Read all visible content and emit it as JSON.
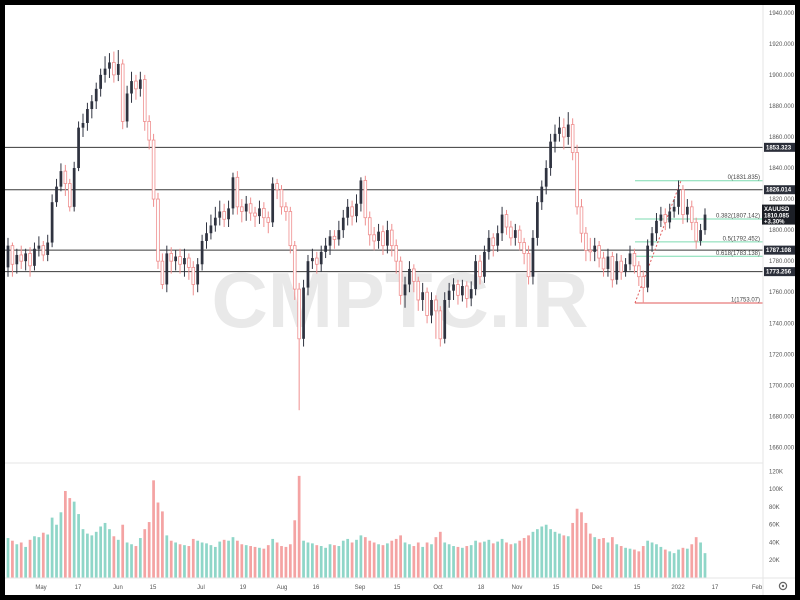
{
  "colors": {
    "up": "#2f3340",
    "down": "#ef8f8f",
    "vol_up": "#8fd6c8",
    "vol_down": "#f4a3a3",
    "level": "#3a3a3a",
    "fib_green": "#7ddbb0",
    "fib_red": "#e05a5a",
    "tag_bg": "#2a2e39",
    "tag_price": "#1c1f26"
  },
  "watermark": "CMPTC.IR",
  "chart_data": {
    "type": "candlestick",
    "symbol": "XAUUSD",
    "price": "1810.085",
    "change": "+3.30%",
    "y_axis_ticks": [
      "1940.000",
      "1920.000",
      "1900.000",
      "1880.000",
      "1860.000",
      "1840.000",
      "1820.000",
      "1800.000",
      "1780.000",
      "1760.000",
      "1740.000",
      "1720.000",
      "1700.000",
      "1680.000",
      "1660.000"
    ],
    "ylim": [
      1650,
      1945
    ],
    "volume_ticks": [
      "120K",
      "100K",
      "80K",
      "60K",
      "40K",
      "20K"
    ],
    "volume_ylim": [
      0,
      125000
    ],
    "x_axis_ticks": [
      "May",
      "17",
      "Jun",
      "15",
      "Jul",
      "19",
      "Aug",
      "16",
      "Sep",
      "15",
      "Oct",
      "18",
      "Nov",
      "15",
      "Dec",
      "15",
      "2022",
      "17",
      "Feb"
    ],
    "horizontal_levels": [
      {
        "price": 1853.323,
        "label": "1853.323"
      },
      {
        "price": 1826.014,
        "label": "1826.014"
      },
      {
        "price": 1787.108,
        "label": "1787.108"
      },
      {
        "price": 1773.256,
        "label": "1773.256"
      }
    ],
    "fibonacci": [
      {
        "ratio": "0",
        "price": 1831.835,
        "label": "0(1831.835)"
      },
      {
        "ratio": "0.382",
        "price": 1807.142,
        "label": "0.382(1807.142)"
      },
      {
        "ratio": "0.5",
        "price": 1792.452,
        "label": "0.5(1792.452)"
      },
      {
        "ratio": "0.618",
        "price": 1783.138,
        "label": "0.618(1783.138)"
      },
      {
        "ratio": "1",
        "price": 1753.07,
        "label": "1(1753.07)"
      }
    ],
    "candles": [
      {
        "o": 1776,
        "c": 1790,
        "h": 1795,
        "l": 1770,
        "v": 45000
      },
      {
        "o": 1790,
        "c": 1778,
        "h": 1792,
        "l": 1770,
        "v": 42000
      },
      {
        "o": 1778,
        "c": 1784,
        "h": 1788,
        "l": 1772,
        "v": 38000
      },
      {
        "o": 1784,
        "c": 1780,
        "h": 1790,
        "l": 1775,
        "v": 40000
      },
      {
        "o": 1780,
        "c": 1785,
        "h": 1788,
        "l": 1774,
        "v": 35000
      },
      {
        "o": 1785,
        "c": 1777,
        "h": 1789,
        "l": 1770,
        "v": 43000
      },
      {
        "o": 1777,
        "c": 1788,
        "h": 1792,
        "l": 1774,
        "v": 47000
      },
      {
        "o": 1788,
        "c": 1790,
        "h": 1796,
        "l": 1783,
        "v": 46000
      },
      {
        "o": 1790,
        "c": 1784,
        "h": 1793,
        "l": 1780,
        "v": 51000
      },
      {
        "o": 1784,
        "c": 1792,
        "h": 1797,
        "l": 1780,
        "v": 49000
      },
      {
        "o": 1792,
        "c": 1818,
        "h": 1823,
        "l": 1789,
        "v": 68000
      },
      {
        "o": 1818,
        "c": 1828,
        "h": 1833,
        "l": 1815,
        "v": 60000
      },
      {
        "o": 1828,
        "c": 1838,
        "h": 1843,
        "l": 1825,
        "v": 74000
      },
      {
        "o": 1838,
        "c": 1830,
        "h": 1842,
        "l": 1822,
        "v": 98000
      },
      {
        "o": 1830,
        "c": 1815,
        "h": 1833,
        "l": 1812,
        "v": 90000
      },
      {
        "o": 1815,
        "c": 1840,
        "h": 1844,
        "l": 1812,
        "v": 86000
      },
      {
        "o": 1840,
        "c": 1866,
        "h": 1870,
        "l": 1838,
        "v": 72000
      },
      {
        "o": 1866,
        "c": 1869,
        "h": 1875,
        "l": 1860,
        "v": 55000
      },
      {
        "o": 1869,
        "c": 1878,
        "h": 1882,
        "l": 1864,
        "v": 50000
      },
      {
        "o": 1878,
        "c": 1883,
        "h": 1887,
        "l": 1872,
        "v": 48000
      },
      {
        "o": 1883,
        "c": 1891,
        "h": 1895,
        "l": 1878,
        "v": 52000
      },
      {
        "o": 1891,
        "c": 1900,
        "h": 1904,
        "l": 1886,
        "v": 58000
      },
      {
        "o": 1900,
        "c": 1904,
        "h": 1912,
        "l": 1895,
        "v": 62000
      },
      {
        "o": 1904,
        "c": 1908,
        "h": 1914,
        "l": 1898,
        "v": 55000
      },
      {
        "o": 1908,
        "c": 1900,
        "h": 1915,
        "l": 1895,
        "v": 47000
      },
      {
        "o": 1900,
        "c": 1907,
        "h": 1916,
        "l": 1896,
        "v": 43000
      },
      {
        "o": 1907,
        "c": 1870,
        "h": 1910,
        "l": 1865,
        "v": 60000
      },
      {
        "o": 1870,
        "c": 1888,
        "h": 1893,
        "l": 1866,
        "v": 40000
      },
      {
        "o": 1888,
        "c": 1896,
        "h": 1902,
        "l": 1882,
        "v": 38000
      },
      {
        "o": 1896,
        "c": 1891,
        "h": 1900,
        "l": 1884,
        "v": 36000
      },
      {
        "o": 1891,
        "c": 1897,
        "h": 1902,
        "l": 1886,
        "v": 45000
      },
      {
        "o": 1897,
        "c": 1870,
        "h": 1900,
        "l": 1864,
        "v": 55000
      },
      {
        "o": 1870,
        "c": 1858,
        "h": 1874,
        "l": 1852,
        "v": 63000
      },
      {
        "o": 1858,
        "c": 1820,
        "h": 1862,
        "l": 1815,
        "v": 110000
      },
      {
        "o": 1820,
        "c": 1780,
        "h": 1824,
        "l": 1775,
        "v": 85000
      },
      {
        "o": 1780,
        "c": 1765,
        "h": 1785,
        "l": 1762,
        "v": 75000
      },
      {
        "o": 1765,
        "c": 1785,
        "h": 1790,
        "l": 1760,
        "v": 48000
      },
      {
        "o": 1785,
        "c": 1780,
        "h": 1789,
        "l": 1772,
        "v": 42000
      },
      {
        "o": 1780,
        "c": 1783,
        "h": 1787,
        "l": 1774,
        "v": 40000
      },
      {
        "o": 1783,
        "c": 1778,
        "h": 1788,
        "l": 1772,
        "v": 38000
      },
      {
        "o": 1778,
        "c": 1782,
        "h": 1788,
        "l": 1770,
        "v": 37000
      },
      {
        "o": 1782,
        "c": 1776,
        "h": 1785,
        "l": 1768,
        "v": 36000
      },
      {
        "o": 1776,
        "c": 1765,
        "h": 1780,
        "l": 1758,
        "v": 44000
      },
      {
        "o": 1765,
        "c": 1778,
        "h": 1782,
        "l": 1760,
        "v": 42000
      },
      {
        "o": 1778,
        "c": 1793,
        "h": 1797,
        "l": 1774,
        "v": 40000
      },
      {
        "o": 1793,
        "c": 1798,
        "h": 1805,
        "l": 1788,
        "v": 39000
      },
      {
        "o": 1798,
        "c": 1803,
        "h": 1810,
        "l": 1794,
        "v": 37000
      },
      {
        "o": 1803,
        "c": 1808,
        "h": 1815,
        "l": 1799,
        "v": 35000
      },
      {
        "o": 1808,
        "c": 1812,
        "h": 1819,
        "l": 1803,
        "v": 41000
      },
      {
        "o": 1812,
        "c": 1807,
        "h": 1817,
        "l": 1802,
        "v": 43000
      },
      {
        "o": 1807,
        "c": 1814,
        "h": 1819,
        "l": 1802,
        "v": 42000
      },
      {
        "o": 1814,
        "c": 1834,
        "h": 1837,
        "l": 1810,
        "v": 46000
      },
      {
        "o": 1834,
        "c": 1815,
        "h": 1838,
        "l": 1810,
        "v": 42000
      },
      {
        "o": 1815,
        "c": 1812,
        "h": 1820,
        "l": 1805,
        "v": 38000
      },
      {
        "o": 1812,
        "c": 1817,
        "h": 1822,
        "l": 1806,
        "v": 37000
      },
      {
        "o": 1817,
        "c": 1811,
        "h": 1821,
        "l": 1806,
        "v": 36000
      },
      {
        "o": 1811,
        "c": 1809,
        "h": 1815,
        "l": 1802,
        "v": 35000
      },
      {
        "o": 1809,
        "c": 1814,
        "h": 1819,
        "l": 1804,
        "v": 34000
      },
      {
        "o": 1814,
        "c": 1808,
        "h": 1818,
        "l": 1802,
        "v": 33000
      },
      {
        "o": 1808,
        "c": 1805,
        "h": 1812,
        "l": 1798,
        "v": 37000
      },
      {
        "o": 1805,
        "c": 1830,
        "h": 1834,
        "l": 1802,
        "v": 44000
      },
      {
        "o": 1830,
        "c": 1826,
        "h": 1833,
        "l": 1820,
        "v": 40000
      },
      {
        "o": 1826,
        "c": 1815,
        "h": 1829,
        "l": 1810,
        "v": 36000
      },
      {
        "o": 1815,
        "c": 1812,
        "h": 1818,
        "l": 1806,
        "v": 35000
      },
      {
        "o": 1812,
        "c": 1790,
        "h": 1815,
        "l": 1785,
        "v": 38000
      },
      {
        "o": 1790,
        "c": 1762,
        "h": 1793,
        "l": 1755,
        "v": 65000
      },
      {
        "o": 1762,
        "c": 1730,
        "h": 1766,
        "l": 1684,
        "v": 115000
      },
      {
        "o": 1730,
        "c": 1763,
        "h": 1768,
        "l": 1725,
        "v": 42000
      },
      {
        "o": 1763,
        "c": 1780,
        "h": 1784,
        "l": 1758,
        "v": 40000
      },
      {
        "o": 1780,
        "c": 1782,
        "h": 1788,
        "l": 1775,
        "v": 39000
      },
      {
        "o": 1782,
        "c": 1778,
        "h": 1786,
        "l": 1772,
        "v": 37000
      },
      {
        "o": 1778,
        "c": 1786,
        "h": 1790,
        "l": 1773,
        "v": 36000
      },
      {
        "o": 1786,
        "c": 1790,
        "h": 1795,
        "l": 1782,
        "v": 34000
      },
      {
        "o": 1790,
        "c": 1796,
        "h": 1800,
        "l": 1784,
        "v": 38000
      },
      {
        "o": 1796,
        "c": 1794,
        "h": 1800,
        "l": 1788,
        "v": 37000
      },
      {
        "o": 1794,
        "c": 1800,
        "h": 1806,
        "l": 1790,
        "v": 36000
      },
      {
        "o": 1800,
        "c": 1808,
        "h": 1813,
        "l": 1795,
        "v": 42000
      },
      {
        "o": 1808,
        "c": 1815,
        "h": 1820,
        "l": 1803,
        "v": 44000
      },
      {
        "o": 1815,
        "c": 1809,
        "h": 1819,
        "l": 1803,
        "v": 40000
      },
      {
        "o": 1809,
        "c": 1817,
        "h": 1823,
        "l": 1805,
        "v": 43000
      },
      {
        "o": 1817,
        "c": 1832,
        "h": 1834,
        "l": 1812,
        "v": 48000
      },
      {
        "o": 1832,
        "c": 1808,
        "h": 1835,
        "l": 1803,
        "v": 46000
      },
      {
        "o": 1808,
        "c": 1797,
        "h": 1812,
        "l": 1790,
        "v": 42000
      },
      {
        "o": 1797,
        "c": 1793,
        "h": 1802,
        "l": 1787,
        "v": 40000
      },
      {
        "o": 1793,
        "c": 1799,
        "h": 1804,
        "l": 1788,
        "v": 38000
      },
      {
        "o": 1799,
        "c": 1790,
        "h": 1803,
        "l": 1784,
        "v": 37000
      },
      {
        "o": 1790,
        "c": 1800,
        "h": 1806,
        "l": 1785,
        "v": 39000
      },
      {
        "o": 1800,
        "c": 1790,
        "h": 1804,
        "l": 1783,
        "v": 42000
      },
      {
        "o": 1790,
        "c": 1780,
        "h": 1794,
        "l": 1772,
        "v": 44000
      },
      {
        "o": 1780,
        "c": 1758,
        "h": 1783,
        "l": 1752,
        "v": 48000
      },
      {
        "o": 1758,
        "c": 1765,
        "h": 1770,
        "l": 1750,
        "v": 40000
      },
      {
        "o": 1765,
        "c": 1775,
        "h": 1780,
        "l": 1760,
        "v": 38000
      },
      {
        "o": 1775,
        "c": 1767,
        "h": 1778,
        "l": 1760,
        "v": 36000
      },
      {
        "o": 1767,
        "c": 1755,
        "h": 1770,
        "l": 1748,
        "v": 40000
      },
      {
        "o": 1755,
        "c": 1760,
        "h": 1766,
        "l": 1748,
        "v": 35000
      },
      {
        "o": 1760,
        "c": 1745,
        "h": 1763,
        "l": 1740,
        "v": 40000
      },
      {
        "o": 1745,
        "c": 1755,
        "h": 1760,
        "l": 1740,
        "v": 38000
      },
      {
        "o": 1755,
        "c": 1748,
        "h": 1758,
        "l": 1730,
        "v": 46000
      },
      {
        "o": 1748,
        "c": 1730,
        "h": 1751,
        "l": 1725,
        "v": 52000
      },
      {
        "o": 1730,
        "c": 1755,
        "h": 1760,
        "l": 1727,
        "v": 40000
      },
      {
        "o": 1755,
        "c": 1761,
        "h": 1766,
        "l": 1750,
        "v": 38000
      },
      {
        "o": 1761,
        "c": 1765,
        "h": 1769,
        "l": 1755,
        "v": 36000
      },
      {
        "o": 1765,
        "c": 1758,
        "h": 1768,
        "l": 1752,
        "v": 35000
      },
      {
        "o": 1758,
        "c": 1764,
        "h": 1768,
        "l": 1754,
        "v": 34000
      },
      {
        "o": 1764,
        "c": 1756,
        "h": 1767,
        "l": 1750,
        "v": 36000
      },
      {
        "o": 1756,
        "c": 1762,
        "h": 1767,
        "l": 1751,
        "v": 37000
      },
      {
        "o": 1762,
        "c": 1780,
        "h": 1784,
        "l": 1758,
        "v": 42000
      },
      {
        "o": 1780,
        "c": 1770,
        "h": 1784,
        "l": 1765,
        "v": 40000
      },
      {
        "o": 1770,
        "c": 1786,
        "h": 1790,
        "l": 1766,
        "v": 41000
      },
      {
        "o": 1786,
        "c": 1795,
        "h": 1800,
        "l": 1781,
        "v": 43000
      },
      {
        "o": 1795,
        "c": 1790,
        "h": 1798,
        "l": 1783,
        "v": 39000
      },
      {
        "o": 1790,
        "c": 1798,
        "h": 1803,
        "l": 1786,
        "v": 41000
      },
      {
        "o": 1798,
        "c": 1810,
        "h": 1815,
        "l": 1793,
        "v": 44000
      },
      {
        "o": 1810,
        "c": 1802,
        "h": 1813,
        "l": 1797,
        "v": 40000
      },
      {
        "o": 1802,
        "c": 1795,
        "h": 1806,
        "l": 1790,
        "v": 38000
      },
      {
        "o": 1795,
        "c": 1800,
        "h": 1804,
        "l": 1790,
        "v": 39000
      },
      {
        "o": 1800,
        "c": 1792,
        "h": 1803,
        "l": 1787,
        "v": 42000
      },
      {
        "o": 1792,
        "c": 1785,
        "h": 1795,
        "l": 1778,
        "v": 45000
      },
      {
        "o": 1785,
        "c": 1770,
        "h": 1790,
        "l": 1765,
        "v": 48000
      },
      {
        "o": 1770,
        "c": 1795,
        "h": 1800,
        "l": 1765,
        "v": 52000
      },
      {
        "o": 1795,
        "c": 1818,
        "h": 1822,
        "l": 1790,
        "v": 55000
      },
      {
        "o": 1818,
        "c": 1828,
        "h": 1832,
        "l": 1813,
        "v": 58000
      },
      {
        "o": 1828,
        "c": 1840,
        "h": 1845,
        "l": 1823,
        "v": 60000
      },
      {
        "o": 1840,
        "c": 1857,
        "h": 1862,
        "l": 1835,
        "v": 55000
      },
      {
        "o": 1857,
        "c": 1862,
        "h": 1868,
        "l": 1850,
        "v": 52000
      },
      {
        "o": 1862,
        "c": 1866,
        "h": 1873,
        "l": 1857,
        "v": 50000
      },
      {
        "o": 1866,
        "c": 1860,
        "h": 1872,
        "l": 1852,
        "v": 48000
      },
      {
        "o": 1860,
        "c": 1868,
        "h": 1876,
        "l": 1855,
        "v": 47000
      },
      {
        "o": 1868,
        "c": 1850,
        "h": 1872,
        "l": 1845,
        "v": 62000
      },
      {
        "o": 1850,
        "c": 1815,
        "h": 1855,
        "l": 1810,
        "v": 78000
      },
      {
        "o": 1815,
        "c": 1798,
        "h": 1820,
        "l": 1792,
        "v": 74000
      },
      {
        "o": 1798,
        "c": 1787,
        "h": 1802,
        "l": 1780,
        "v": 62000
      },
      {
        "o": 1787,
        "c": 1786,
        "h": 1795,
        "l": 1780,
        "v": 50000
      },
      {
        "o": 1786,
        "c": 1790,
        "h": 1795,
        "l": 1780,
        "v": 46000
      },
      {
        "o": 1790,
        "c": 1782,
        "h": 1793,
        "l": 1776,
        "v": 44000
      },
      {
        "o": 1782,
        "c": 1775,
        "h": 1786,
        "l": 1770,
        "v": 45000
      },
      {
        "o": 1775,
        "c": 1783,
        "h": 1788,
        "l": 1770,
        "v": 40000
      },
      {
        "o": 1783,
        "c": 1768,
        "h": 1786,
        "l": 1763,
        "v": 46000
      },
      {
        "o": 1768,
        "c": 1780,
        "h": 1785,
        "l": 1765,
        "v": 38000
      },
      {
        "o": 1780,
        "c": 1773,
        "h": 1784,
        "l": 1768,
        "v": 36000
      },
      {
        "o": 1773,
        "c": 1778,
        "h": 1782,
        "l": 1770,
        "v": 34000
      },
      {
        "o": 1778,
        "c": 1785,
        "h": 1790,
        "l": 1774,
        "v": 33000
      },
      {
        "o": 1785,
        "c": 1777,
        "h": 1788,
        "l": 1772,
        "v": 32000
      },
      {
        "o": 1777,
        "c": 1770,
        "h": 1780,
        "l": 1764,
        "v": 30000
      },
      {
        "o": 1770,
        "c": 1763,
        "h": 1774,
        "l": 1753,
        "v": 36000
      },
      {
        "o": 1763,
        "c": 1790,
        "h": 1794,
        "l": 1760,
        "v": 42000
      },
      {
        "o": 1790,
        "c": 1798,
        "h": 1802,
        "l": 1786,
        "v": 40000
      },
      {
        "o": 1798,
        "c": 1806,
        "h": 1811,
        "l": 1793,
        "v": 38000
      },
      {
        "o": 1806,
        "c": 1810,
        "h": 1815,
        "l": 1802,
        "v": 35000
      },
      {
        "o": 1810,
        "c": 1805,
        "h": 1814,
        "l": 1800,
        "v": 32000
      },
      {
        "o": 1805,
        "c": 1812,
        "h": 1817,
        "l": 1801,
        "v": 30000
      },
      {
        "o": 1812,
        "c": 1815,
        "h": 1820,
        "l": 1808,
        "v": 28000
      },
      {
        "o": 1815,
        "c": 1826,
        "h": 1832,
        "l": 1810,
        "v": 32000
      },
      {
        "o": 1826,
        "c": 1810,
        "h": 1829,
        "l": 1804,
        "v": 34000
      },
      {
        "o": 1810,
        "c": 1815,
        "h": 1820,
        "l": 1805,
        "v": 33000
      },
      {
        "o": 1815,
        "c": 1805,
        "h": 1819,
        "l": 1800,
        "v": 38000
      },
      {
        "o": 1805,
        "c": 1793,
        "h": 1808,
        "l": 1788,
        "v": 46000
      },
      {
        "o": 1793,
        "c": 1800,
        "h": 1804,
        "l": 1790,
        "v": 40000
      },
      {
        "o": 1800,
        "c": 1810,
        "h": 1814,
        "l": 1797,
        "v": 28000
      }
    ]
  }
}
